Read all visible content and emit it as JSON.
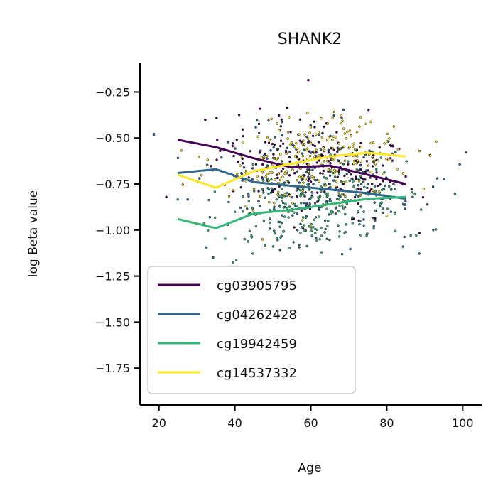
{
  "chart_data": {
    "type": "scatter",
    "title": "SHANK2",
    "xlabel": "Age",
    "ylabel": "log Beta value",
    "xlim": [
      15,
      105
    ],
    "ylim": [
      -1.95,
      -0.09
    ],
    "xticks": [
      20,
      40,
      60,
      80,
      100
    ],
    "yticks": [
      -0.25,
      -0.5,
      -0.75,
      -1.0,
      -1.25,
      -1.5,
      -1.75
    ],
    "xtick_labels": [
      "20",
      "40",
      "60",
      "80",
      "100"
    ],
    "ytick_labels": [
      "−0.25",
      "−0.50",
      "−0.75",
      "−1.00",
      "−1.25",
      "−1.50",
      "−1.75"
    ],
    "grid": false,
    "legend_position": "lower-left",
    "series": [
      {
        "name": "cg03905795",
        "color": "#440154",
        "trend_x": [
          25,
          35,
          45,
          55,
          65,
          75,
          85
        ],
        "trend_y": [
          -0.51,
          -0.55,
          -0.61,
          -0.66,
          -0.65,
          -0.7,
          -0.75
        ],
        "center": -0.68,
        "spread": 0.17
      },
      {
        "name": "cg04262428",
        "color": "#31688e",
        "trend_x": [
          25,
          35,
          45,
          55,
          65,
          75,
          85
        ],
        "trend_y": [
          -0.69,
          -0.67,
          -0.74,
          -0.76,
          -0.78,
          -0.8,
          -0.83
        ],
        "center": -0.82,
        "spread": 0.22
      },
      {
        "name": "cg19942459",
        "color": "#35b779",
        "trend_x": [
          25,
          35,
          45,
          55,
          65,
          75,
          85
        ],
        "trend_y": [
          -0.94,
          -0.99,
          -0.91,
          -0.89,
          -0.86,
          -0.83,
          -0.82
        ],
        "center": -0.92,
        "spread": 0.14
      },
      {
        "name": "cg14537332",
        "color": "#fde725",
        "trend_x": [
          25,
          35,
          45,
          55,
          65,
          75,
          85
        ],
        "trend_y": [
          -0.7,
          -0.77,
          -0.68,
          -0.64,
          -0.6,
          -0.58,
          -0.6
        ],
        "center": -0.62,
        "spread": 0.15
      }
    ]
  }
}
